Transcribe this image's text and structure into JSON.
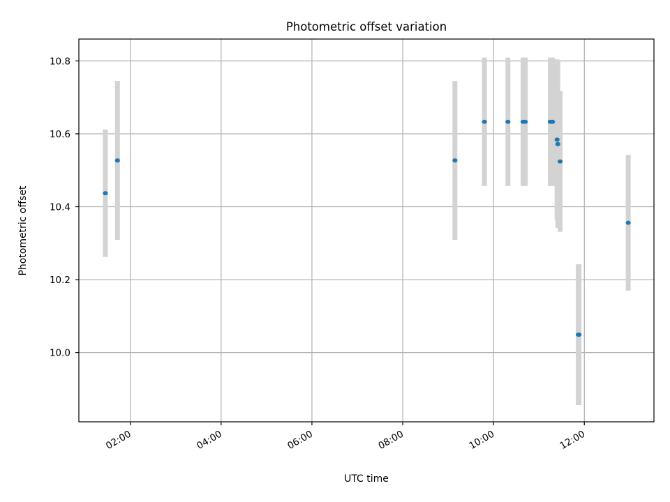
{
  "chart_data": {
    "type": "scatter",
    "title": "Photometric offset variation",
    "xlabel": "UTC time",
    "ylabel": "Photometric offset",
    "x_is_time": true,
    "xlim": [
      "00:52",
      "13:32"
    ],
    "ylim": [
      9.81,
      10.86
    ],
    "x_ticks": [
      "02:00",
      "04:00",
      "06:00",
      "08:00",
      "10:00",
      "12:00"
    ],
    "y_ticks": [
      10.0,
      10.2,
      10.4,
      10.6,
      10.8
    ],
    "y_tick_labels": [
      "10.0",
      "10.2",
      "10.4",
      "10.6",
      "10.8"
    ],
    "grid": true,
    "series": [
      {
        "points": [
          {
            "x": "01:27",
            "y": 10.437,
            "yerr": 0.175
          },
          {
            "x": "01:43",
            "y": 10.527,
            "yerr": 0.218
          },
          {
            "x": "09:09",
            "y": 10.527,
            "yerr": 0.218
          },
          {
            "x": "09:48",
            "y": 10.633,
            "yerr": 0.176
          },
          {
            "x": "10:19",
            "y": 10.633,
            "yerr": 0.176
          },
          {
            "x": "10:39",
            "y": 10.633,
            "yerr": 0.176
          },
          {
            "x": "10:42",
            "y": 10.633,
            "yerr": 0.176
          },
          {
            "x": "11:15",
            "y": 10.633,
            "yerr": 0.176
          },
          {
            "x": "11:18",
            "y": 10.633,
            "yerr": 0.176
          },
          {
            "x": "11:24",
            "y": 10.584,
            "yerr": 0.22
          },
          {
            "x": "11:25",
            "y": 10.572,
            "yerr": 0.23
          },
          {
            "x": "11:28",
            "y": 10.524,
            "yerr": 0.193
          },
          {
            "x": "11:52",
            "y": 10.049,
            "yerr": 0.193
          },
          {
            "x": "11:53",
            "y": 10.049,
            "yerr": 0.193
          },
          {
            "x": "12:58",
            "y": 10.356,
            "yerr": 0.186
          }
        ]
      }
    ],
    "colors": {
      "marker": "#1f77b4",
      "errorbar": "#d3d3d3",
      "grid": "#b0b0b0",
      "axes": "#000000"
    }
  }
}
